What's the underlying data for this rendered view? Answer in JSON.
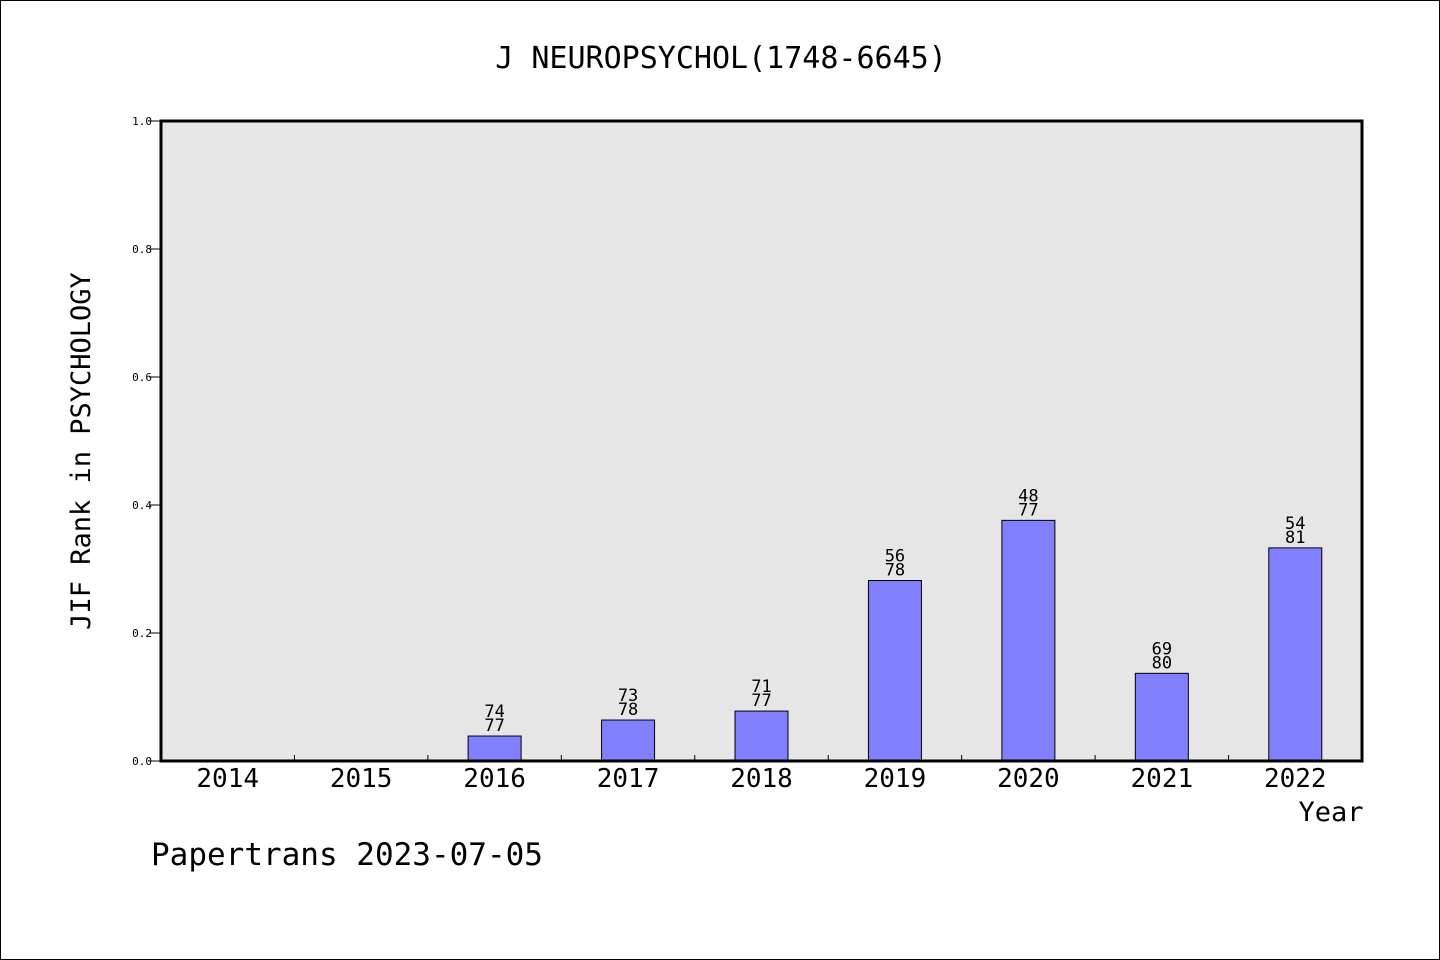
{
  "chart_data": {
    "type": "bar",
    "title": "J NEUROPSYCHOL(1748-6645)",
    "xlabel": "Year",
    "ylabel": "JIF Rank in PSYCHOLOGY",
    "ylim": [
      0,
      1.0
    ],
    "yticks": [
      "0.0",
      "0.2",
      "0.4",
      "0.6",
      "0.8",
      "1.0"
    ],
    "categories": [
      "2014",
      "2015",
      "2016",
      "2017",
      "2018",
      "2019",
      "2020",
      "2021",
      "2022"
    ],
    "values": [
      null,
      null,
      0.039,
      0.064,
      0.078,
      0.282,
      0.376,
      0.137,
      0.333
    ],
    "rank": [
      null,
      null,
      "74",
      "73",
      "71",
      "56",
      "48",
      "69",
      "54"
    ],
    "total": [
      null,
      null,
      "77",
      "78",
      "77",
      "78",
      "77",
      "80",
      "81"
    ],
    "bar_color": "#8080ff",
    "plot_background": "#e6e6e6",
    "grid": false
  },
  "footer": "Papertrans 2023-07-05"
}
